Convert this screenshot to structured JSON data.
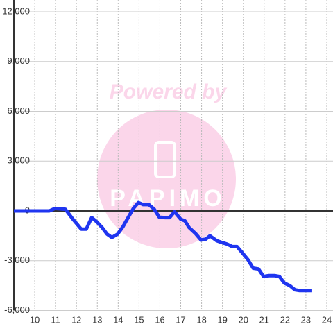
{
  "chart_data": {
    "type": "line",
    "watermark": "Powered by",
    "logo_text": "PAPIMO",
    "series": [
      {
        "color": "#1f35f0",
        "x": [
          9.0,
          10.7,
          10.97,
          11.47,
          11.8,
          12.23,
          12.47,
          12.73,
          12.97,
          13.23,
          13.47,
          13.7,
          13.97,
          14.23,
          14.5,
          14.73,
          14.97,
          15.2,
          15.47,
          15.73,
          15.97,
          16.23,
          16.47,
          16.7,
          17.0,
          17.2,
          17.4,
          17.7,
          17.97,
          18.2,
          18.4,
          18.73,
          18.97,
          19.23,
          19.47,
          19.7,
          19.97,
          20.23,
          20.47,
          20.73,
          20.97,
          21.23,
          21.5,
          21.73,
          21.97,
          22.23,
          22.47,
          22.7,
          23.3
        ],
        "values": [
          0,
          0,
          150,
          100,
          -450,
          -1100,
          -1100,
          -400,
          -650,
          -1000,
          -1400,
          -1600,
          -1400,
          -950,
          -350,
          150,
          500,
          380,
          380,
          100,
          -380,
          -400,
          -400,
          -50,
          -500,
          -600,
          -1000,
          -1350,
          -1750,
          -1700,
          -1500,
          -1800,
          -1900,
          -2000,
          -2150,
          -2150,
          -2550,
          -2950,
          -3450,
          -3500,
          -3950,
          -3900,
          -3900,
          -3950,
          -4350,
          -4500,
          -4750,
          -4800,
          -4800
        ]
      }
    ],
    "xlim": [
      9.0,
      24.3
    ],
    "xticks": [
      10,
      11,
      12,
      13,
      14,
      15,
      16,
      17,
      18,
      19,
      20,
      21,
      22,
      23,
      24
    ],
    "ylim": [
      -6000,
      12000
    ],
    "yticks": [
      {
        "value": -6000,
        "label": "-6,000"
      },
      {
        "value": -3000,
        "label": "-3,000"
      },
      0,
      {
        "value": 3000,
        "label": "3,000"
      },
      {
        "value": 6000,
        "label": "6,000"
      },
      {
        "value": 9000,
        "label": "9,000"
      },
      {
        "value": 12000,
        "label": "12,000"
      }
    ],
    "grid": true
  }
}
